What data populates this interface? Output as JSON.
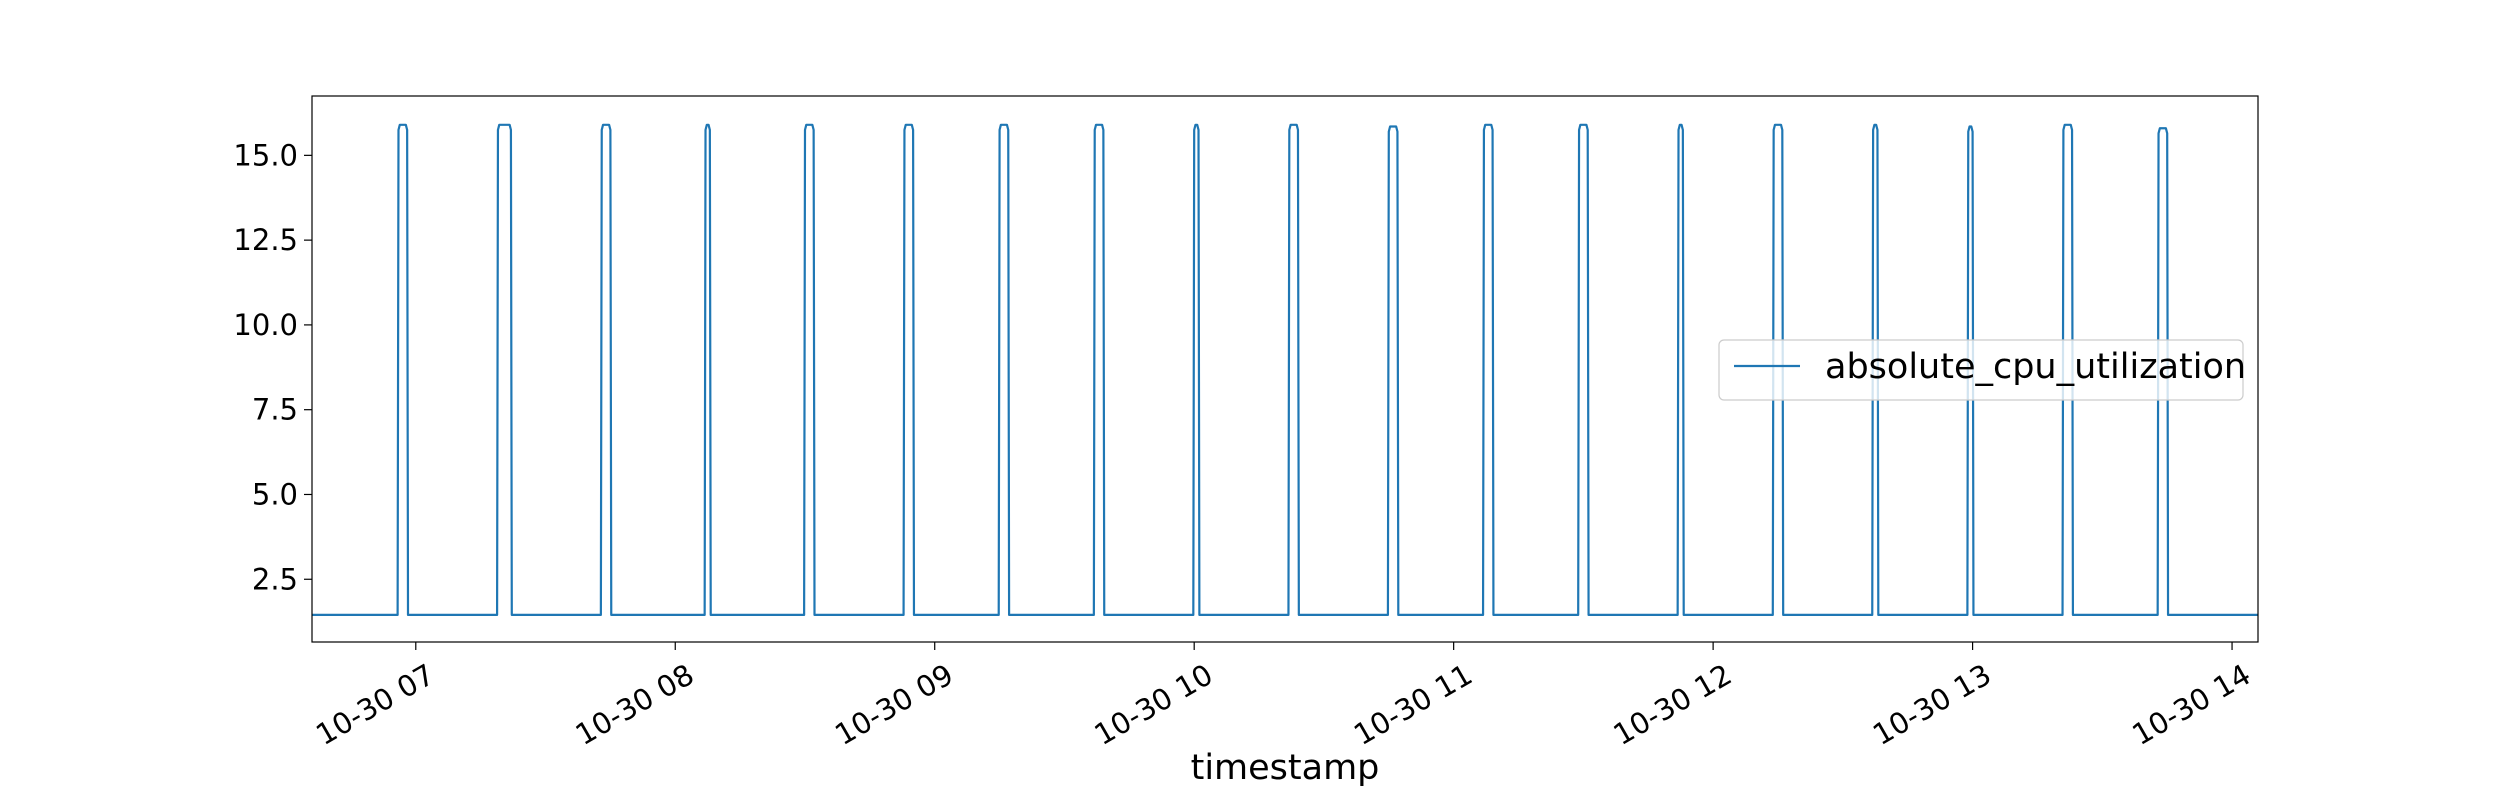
{
  "chart_data": {
    "type": "line",
    "title": "",
    "xlabel": "timestamp",
    "ylabel": "",
    "ylim": [
      0.65,
      16.75
    ],
    "xlim": [
      "10-30 06:36",
      "10-30 14:06"
    ],
    "grid": false,
    "legend_placement": "center-right",
    "series_color": "#1f77b4",
    "x_ticks": [
      {
        "t": "10-30 07:00",
        "label": "10-30 07"
      },
      {
        "t": "10-30 08:00",
        "label": "10-30 08"
      },
      {
        "t": "10-30 09:00",
        "label": "10-30 09"
      },
      {
        "t": "10-30 10:00",
        "label": "10-30 10"
      },
      {
        "t": "10-30 11:00",
        "label": "10-30 11"
      },
      {
        "t": "10-30 12:00",
        "label": "10-30 12"
      },
      {
        "t": "10-30 13:00",
        "label": "10-30 13"
      },
      {
        "t": "10-30 14:00",
        "label": "10-30 14"
      }
    ],
    "y_ticks": [
      {
        "v": 2.5,
        "label": "2.5"
      },
      {
        "v": 5.0,
        "label": "5.0"
      },
      {
        "v": 7.5,
        "label": "7.5"
      },
      {
        "v": 10.0,
        "label": "10.0"
      },
      {
        "v": 12.5,
        "label": "12.5"
      },
      {
        "v": 15.0,
        "label": "15.0"
      }
    ],
    "series": [
      {
        "name": "absolute_cpu_utilization",
        "baseline": 1.45,
        "peaks": [
          {
            "start": "10-30 06:56",
            "end": "10-30 06:58",
            "value": 15.9
          },
          {
            "start": "10-30 07:19",
            "end": "10-30 07:22",
            "value": 15.9
          },
          {
            "start": "10-30 07:43",
            "end": "10-30 07:45",
            "value": 15.9
          },
          {
            "start": "10-30 08:07",
            "end": "10-30 08:08",
            "value": 15.9
          },
          {
            "start": "10-30 08:30",
            "end": "10-30 08:32",
            "value": 15.9
          },
          {
            "start": "10-30 08:53",
            "end": "10-30 08:55",
            "value": 15.9
          },
          {
            "start": "10-30 09:15",
            "end": "10-30 09:17",
            "value": 15.9
          },
          {
            "start": "10-30 09:37",
            "end": "10-30 09:39",
            "value": 15.9
          },
          {
            "start": "10-30 10:00",
            "end": "10-30 10:01",
            "value": 15.9
          },
          {
            "start": "10-30 10:22",
            "end": "10-30 10:24",
            "value": 15.9
          },
          {
            "start": "10-30 10:45",
            "end": "10-30 10:47",
            "value": 15.85
          },
          {
            "start": "10-30 11:07",
            "end": "10-30 11:09",
            "value": 15.9
          },
          {
            "start": "10-30 11:29",
            "end": "10-30 11:31",
            "value": 15.9
          },
          {
            "start": "10-30 11:52",
            "end": "10-30 11:53",
            "value": 15.9
          },
          {
            "start": "10-30 12:14",
            "end": "10-30 12:16",
            "value": 15.9
          },
          {
            "start": "10-30 12:37",
            "end": "10-30 12:38",
            "value": 15.9
          },
          {
            "start": "10-30 12:59",
            "end": "10-30 13:00",
            "value": 15.85
          },
          {
            "start": "10-30 13:21",
            "end": "10-30 13:23",
            "value": 15.9
          },
          {
            "start": "10-30 13:43",
            "end": "10-30 13:45",
            "value": 15.8
          }
        ]
      }
    ]
  }
}
